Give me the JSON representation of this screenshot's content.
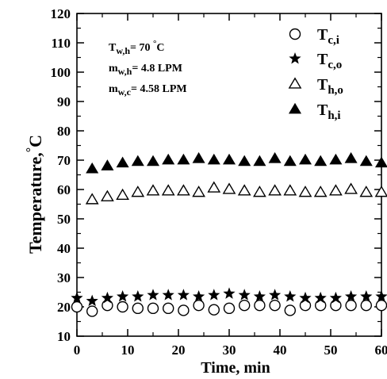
{
  "chart_data": {
    "type": "scatter",
    "title": "",
    "xlabel": "Time, min",
    "ylabel": "Temperature,",
    "ylabel_degree": "°",
    "ylabel_unit": "C",
    "xlim": [
      0,
      60
    ],
    "ylim": [
      10,
      120
    ],
    "xticks": [
      0,
      10,
      20,
      30,
      40,
      50,
      60
    ],
    "yticks": [
      10,
      20,
      30,
      40,
      50,
      60,
      70,
      80,
      90,
      100,
      110,
      120
    ],
    "grid": false,
    "legend_position": "top-right",
    "annotations": [
      {
        "main": "T",
        "sub": "w,h",
        "value": "= 70 ",
        "degree": "°",
        "unit": "C"
      },
      {
        "main": "m",
        "sub": "w,h",
        "value": "= 4.8  LPM",
        "degree": "",
        "unit": ""
      },
      {
        "main": "m",
        "sub": "w,c",
        "value": "= 4.58 LPM",
        "degree": "",
        "unit": ""
      }
    ],
    "series": [
      {
        "name": "T",
        "name_sub": "c,i",
        "marker": "circle-open",
        "x": [
          0,
          3,
          6,
          9,
          12,
          15,
          18,
          21,
          24,
          27,
          30,
          33,
          36,
          39,
          42,
          45,
          48,
          51,
          54,
          57,
          60
        ],
        "y": [
          20,
          18.5,
          20.5,
          20,
          19.5,
          19.5,
          19.5,
          18.8,
          20.5,
          19,
          19.5,
          20.5,
          20.5,
          20.5,
          18.8,
          20.5,
          20.5,
          20.5,
          20.5,
          20.5,
          20.5
        ]
      },
      {
        "name": "T",
        "name_sub": "c,o",
        "marker": "star",
        "x": [
          0,
          3,
          6,
          9,
          12,
          15,
          18,
          21,
          24,
          27,
          30,
          33,
          36,
          39,
          42,
          45,
          48,
          51,
          54,
          57,
          60
        ],
        "y": [
          23,
          22,
          23,
          23.5,
          23.5,
          24,
          24,
          24,
          23.5,
          24,
          24.5,
          24,
          23.5,
          24,
          23.5,
          23,
          23,
          23,
          23.5,
          23.5,
          23.5
        ]
      },
      {
        "name": "T",
        "name_sub": "h,o",
        "marker": "triangle-open",
        "x": [
          3,
          6,
          9,
          12,
          15,
          18,
          21,
          24,
          27,
          30,
          33,
          36,
          39,
          42,
          45,
          48,
          51,
          54,
          57,
          60
        ],
        "y": [
          56.5,
          57.5,
          58,
          59,
          59.5,
          59.5,
          59.5,
          59,
          60.5,
          60,
          59.5,
          59,
          59.5,
          59.5,
          59,
          59,
          59.5,
          60,
          59,
          59
        ]
      },
      {
        "name": "T",
        "name_sub": "h,i",
        "marker": "triangle-filled",
        "x": [
          3,
          6,
          9,
          12,
          15,
          18,
          21,
          24,
          27,
          30,
          33,
          36,
          39,
          42,
          45,
          48,
          51,
          54,
          57,
          60
        ],
        "y": [
          67,
          68,
          69,
          69.5,
          69.5,
          70,
          70,
          70.5,
          70,
          70,
          69.5,
          69.5,
          70.5,
          69.5,
          70,
          69.5,
          70,
          70.5,
          69.5,
          69
        ]
      }
    ]
  }
}
